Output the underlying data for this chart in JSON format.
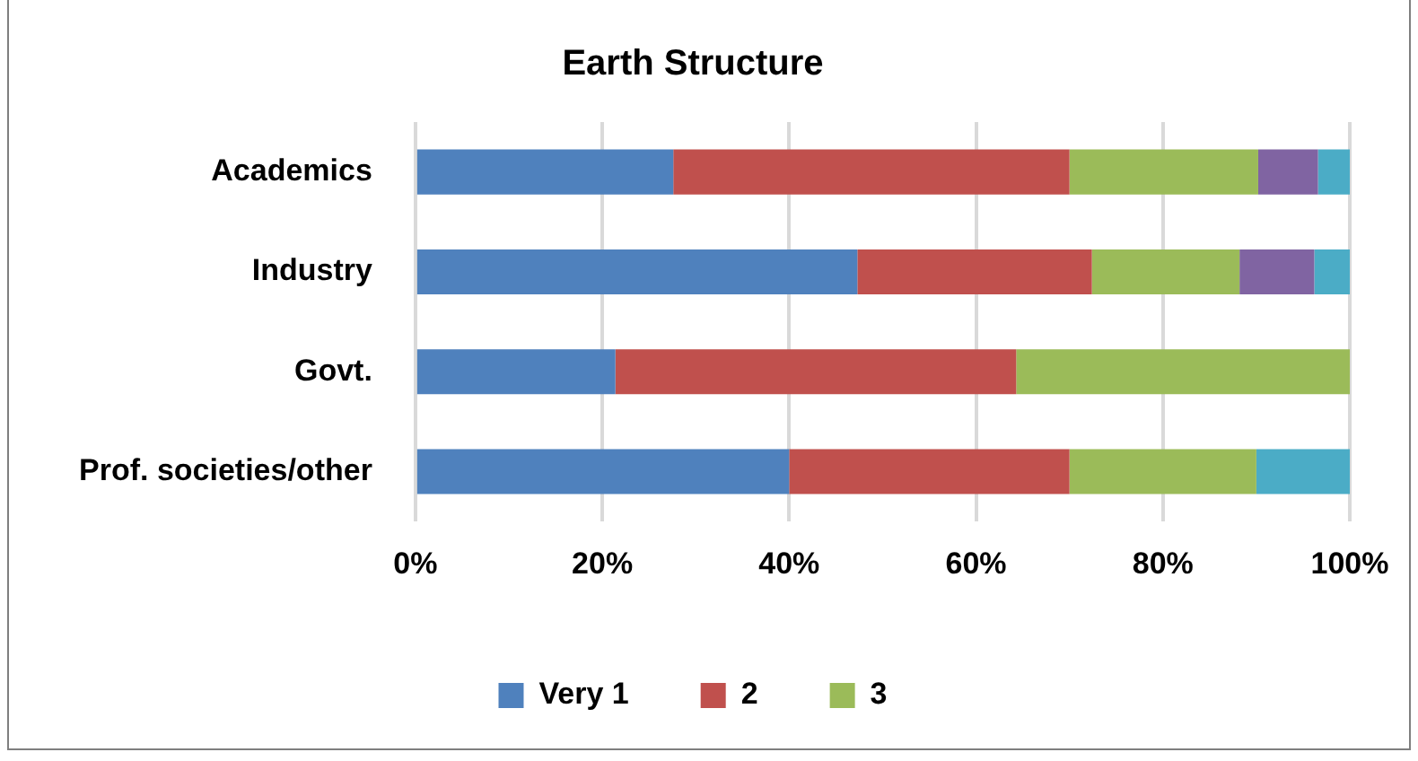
{
  "chart_data": {
    "type": "bar",
    "title": "Earth Structure",
    "orientation": "horizontal",
    "stacked": true,
    "categories": [
      "Academics",
      "Industry",
      "Govt.",
      "Prof. societies/other"
    ],
    "series": [
      {
        "name": "Very 1",
        "color": "#4f81bd",
        "values": [
          27.6,
          47.3,
          21.4,
          40
        ]
      },
      {
        "name": "2",
        "color": "#c0504d",
        "values": [
          42.4,
          25.1,
          42.9,
          30
        ]
      },
      {
        "name": "3",
        "color": "#9bbb59",
        "values": [
          20.2,
          15.8,
          35.7,
          20
        ]
      },
      {
        "color": "#8064a2",
        "values": [
          6.4,
          8.0,
          null,
          null
        ]
      },
      {
        "color": "#4bacc6",
        "values": [
          3.4,
          3.8,
          null,
          10
        ]
      }
    ],
    "xlim": [
      0,
      100
    ],
    "xticks": [
      {
        "value": 0,
        "label": "0%"
      },
      {
        "value": 20,
        "label": "20%"
      },
      {
        "value": 40,
        "label": "40%"
      },
      {
        "value": 60,
        "label": "60%"
      },
      {
        "value": 80,
        "label": "80%"
      },
      {
        "value": 100,
        "label": "100%"
      }
    ],
    "grid": "x",
    "legend": "bottom"
  }
}
